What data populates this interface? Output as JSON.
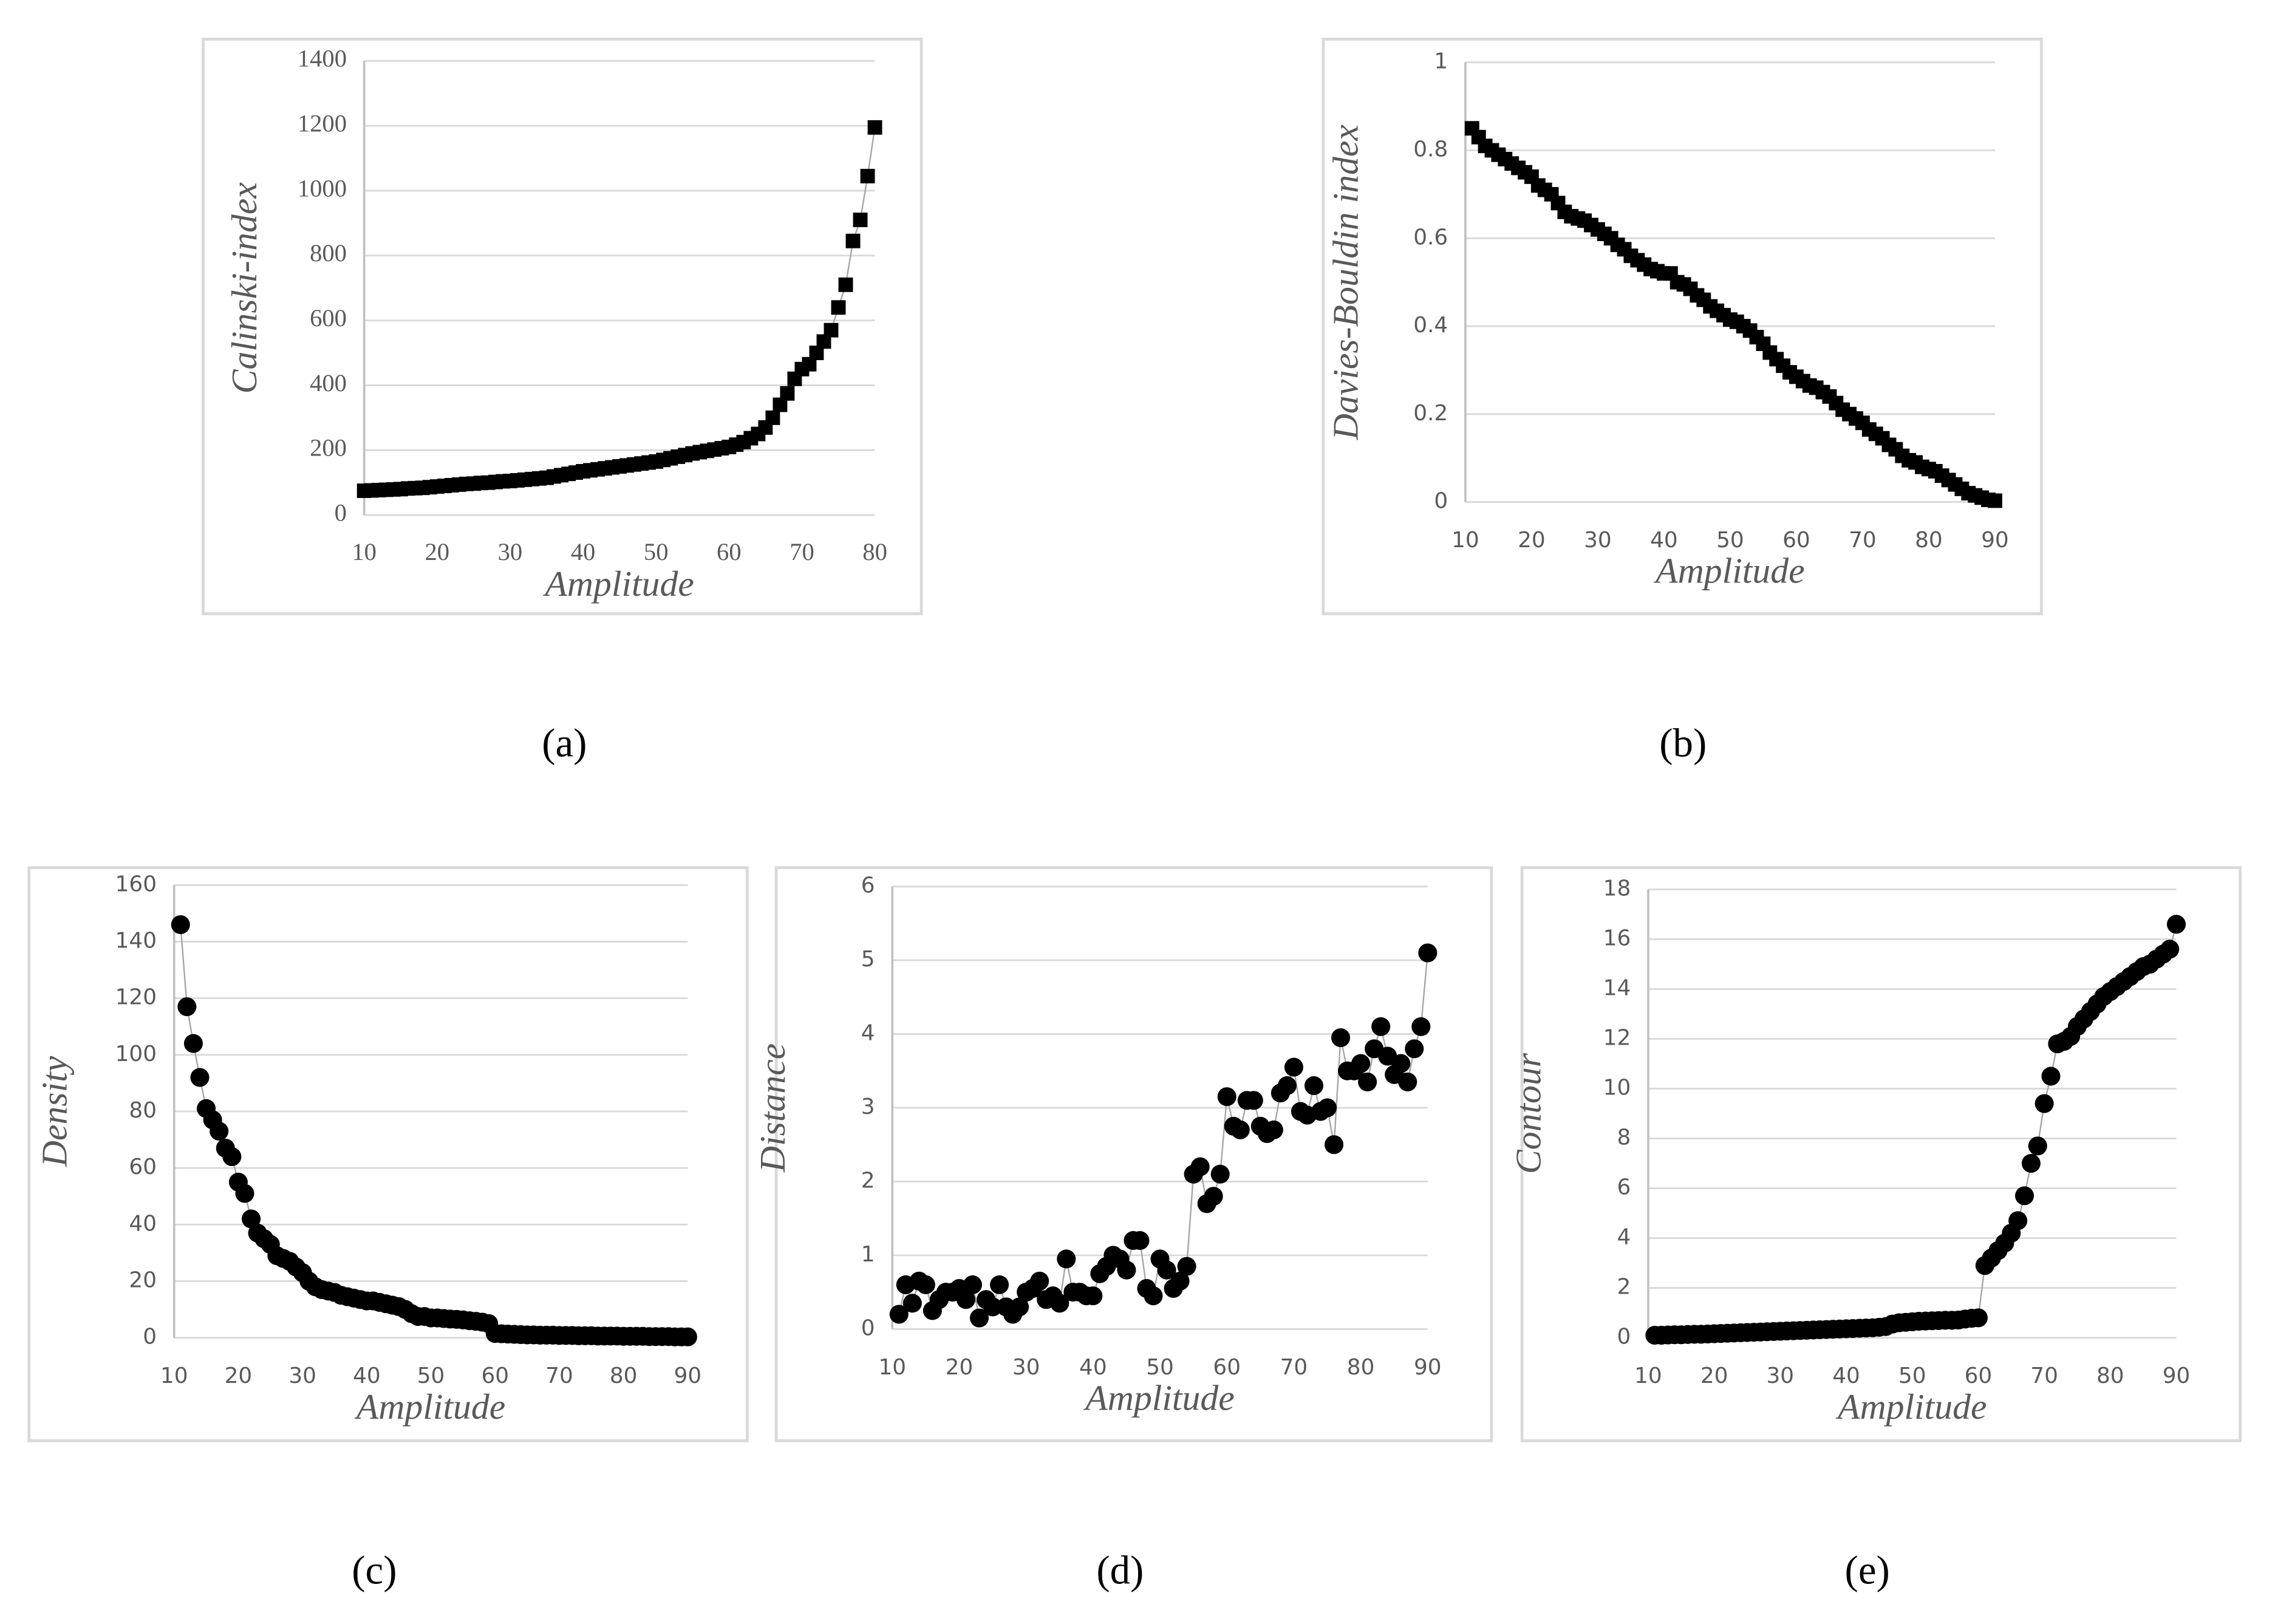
{
  "chart_data": [
    {
      "type": "line",
      "label": "(a)",
      "xlabel": "Amplitude",
      "ylabel": "Calinski-index",
      "marker": "square",
      "color": "#000000",
      "line_color": "#a6a6a6",
      "grid": true,
      "tick_font": "serif",
      "xlim": [
        10,
        80
      ],
      "xticks": [
        10,
        20,
        30,
        40,
        50,
        60,
        70,
        80
      ],
      "ylim": [
        0,
        1400
      ],
      "yticks": [
        0,
        200,
        400,
        600,
        800,
        1000,
        1200,
        1400
      ],
      "x": [
        10,
        11,
        12,
        13,
        14,
        15,
        16,
        17,
        18,
        19,
        20,
        21,
        22,
        23,
        24,
        25,
        26,
        27,
        28,
        29,
        30,
        31,
        32,
        33,
        34,
        35,
        36,
        37,
        38,
        39,
        40,
        41,
        42,
        43,
        44,
        45,
        46,
        47,
        48,
        49,
        50,
        51,
        52,
        53,
        54,
        55,
        56,
        57,
        58,
        59,
        60,
        61,
        62,
        63,
        64,
        65,
        66,
        67,
        68,
        69,
        70,
        71,
        72,
        73,
        74,
        75,
        76,
        77,
        78,
        79,
        80
      ],
      "values": [
        75,
        76,
        77,
        78,
        79,
        80,
        82,
        83,
        84,
        86,
        88,
        90,
        92,
        94,
        96,
        97,
        99,
        100,
        102,
        104,
        105,
        107,
        109,
        111,
        113,
        115,
        119,
        123,
        127,
        131,
        135,
        138,
        141,
        144,
        147,
        150,
        153,
        156,
        159,
        162,
        165,
        170,
        175,
        180,
        185,
        190,
        194,
        198,
        202,
        206,
        210,
        217,
        225,
        237,
        250,
        270,
        300,
        340,
        375,
        420,
        450,
        465,
        500,
        535,
        570,
        640,
        710,
        845,
        910,
        1045,
        1195
      ]
    },
    {
      "type": "line",
      "label": "(b)",
      "xlabel": "Amplitude",
      "ylabel": "Davies-Bouldin index",
      "marker": "square",
      "color": "#000000",
      "line_color": "#a6a6a6",
      "grid": true,
      "tick_font": "sans",
      "xlim": [
        10,
        90
      ],
      "xticks": [
        10,
        20,
        30,
        40,
        50,
        60,
        70,
        80,
        90
      ],
      "ylim": [
        0,
        1
      ],
      "yticks": [
        0,
        0.2,
        0.4,
        0.6,
        0.8,
        1
      ],
      "x": [
        11,
        12,
        13,
        14,
        15,
        16,
        17,
        18,
        19,
        20,
        21,
        22,
        23,
        24,
        25,
        26,
        27,
        28,
        29,
        30,
        31,
        32,
        33,
        34,
        35,
        36,
        37,
        38,
        39,
        40,
        41,
        42,
        43,
        44,
        45,
        46,
        47,
        48,
        49,
        50,
        51,
        52,
        53,
        54,
        55,
        56,
        57,
        58,
        59,
        60,
        61,
        62,
        63,
        64,
        65,
        66,
        67,
        68,
        69,
        70,
        71,
        72,
        73,
        74,
        75,
        76,
        77,
        78,
        79,
        80,
        81,
        82,
        83,
        84,
        85,
        86,
        87,
        88,
        89,
        90
      ],
      "values": [
        0.85,
        0.83,
        0.81,
        0.8,
        0.79,
        0.78,
        0.77,
        0.76,
        0.75,
        0.74,
        0.72,
        0.71,
        0.7,
        0.68,
        0.66,
        0.65,
        0.645,
        0.64,
        0.63,
        0.62,
        0.61,
        0.6,
        0.585,
        0.575,
        0.56,
        0.55,
        0.54,
        0.53,
        0.525,
        0.52,
        0.52,
        0.5,
        0.495,
        0.485,
        0.47,
        0.46,
        0.445,
        0.435,
        0.425,
        0.415,
        0.41,
        0.4,
        0.39,
        0.375,
        0.36,
        0.34,
        0.325,
        0.31,
        0.295,
        0.285,
        0.275,
        0.265,
        0.26,
        0.25,
        0.24,
        0.225,
        0.21,
        0.2,
        0.19,
        0.18,
        0.165,
        0.155,
        0.145,
        0.13,
        0.12,
        0.105,
        0.095,
        0.09,
        0.08,
        0.075,
        0.07,
        0.06,
        0.05,
        0.04,
        0.03,
        0.02,
        0.015,
        0.01,
        0.005,
        0.003
      ]
    },
    {
      "type": "line",
      "label": "(c)",
      "xlabel": "Amplitude",
      "ylabel": "Density",
      "marker": "circle",
      "color": "#000000",
      "line_color": "#a6a6a6",
      "grid": true,
      "tick_font": "sans",
      "xlim": [
        10,
        90
      ],
      "xticks": [
        10,
        20,
        30,
        40,
        50,
        60,
        70,
        80,
        90
      ],
      "ylim": [
        0,
        160
      ],
      "yticks": [
        0,
        20,
        40,
        60,
        80,
        100,
        120,
        140,
        160
      ],
      "x": [
        11,
        12,
        13,
        14,
        15,
        16,
        17,
        18,
        19,
        20,
        21,
        22,
        23,
        24,
        25,
        26,
        27,
        28,
        29,
        30,
        31,
        32,
        33,
        34,
        35,
        36,
        37,
        38,
        39,
        40,
        41,
        42,
        43,
        44,
        45,
        46,
        47,
        48,
        49,
        50,
        51,
        52,
        53,
        54,
        55,
        56,
        57,
        58,
        59,
        60,
        61,
        62,
        63,
        64,
        65,
        66,
        67,
        68,
        69,
        70,
        71,
        72,
        73,
        74,
        75,
        76,
        77,
        78,
        79,
        80,
        81,
        82,
        83,
        84,
        85,
        86,
        87,
        88,
        89,
        90
      ],
      "values": [
        146,
        117,
        104,
        92,
        81,
        77,
        73,
        67,
        64,
        55,
        51,
        42,
        37,
        35,
        33,
        29,
        28,
        27,
        25,
        23,
        20,
        18,
        17,
        16.5,
        16,
        15,
        14.5,
        14,
        13.5,
        13,
        13,
        12.5,
        12,
        11.5,
        11,
        10,
        8.5,
        7.5,
        7.5,
        7,
        7,
        6.8,
        6.6,
        6.5,
        6.3,
        6,
        5.8,
        5.5,
        5,
        1.5,
        1.4,
        1.3,
        1.2,
        1.1,
        1,
        1,
        0.9,
        0.9,
        0.9,
        0.8,
        0.8,
        0.8,
        0.7,
        0.7,
        0.7,
        0.6,
        0.6,
        0.6,
        0.6,
        0.5,
        0.5,
        0.5,
        0.5,
        0.4,
        0.4,
        0.4,
        0.4,
        0.3,
        0.3,
        0.3
      ]
    },
    {
      "type": "line",
      "label": "(d)",
      "xlabel": "Amplitude",
      "ylabel": "Distance",
      "marker": "circle",
      "color": "#000000",
      "line_color": "#a6a6a6",
      "grid": true,
      "tick_font": "sans",
      "xlim": [
        10,
        90
      ],
      "xticks": [
        10,
        20,
        30,
        40,
        50,
        60,
        70,
        80,
        90
      ],
      "ylim": [
        0,
        6
      ],
      "yticks": [
        0,
        1,
        2,
        3,
        4,
        5,
        6
      ],
      "x": [
        11,
        12,
        13,
        14,
        15,
        16,
        17,
        18,
        19,
        20,
        21,
        22,
        23,
        24,
        25,
        26,
        27,
        28,
        29,
        30,
        31,
        32,
        33,
        34,
        35,
        36,
        37,
        38,
        39,
        40,
        41,
        42,
        43,
        44,
        45,
        46,
        47,
        48,
        49,
        50,
        51,
        52,
        53,
        54,
        55,
        56,
        57,
        58,
        59,
        60,
        61,
        62,
        63,
        64,
        65,
        66,
        67,
        68,
        69,
        70,
        71,
        72,
        73,
        74,
        75,
        76,
        77,
        78,
        79,
        80,
        81,
        82,
        83,
        84,
        85,
        86,
        87,
        88,
        89,
        90
      ],
      "values": [
        0.2,
        0.6,
        0.35,
        0.65,
        0.6,
        0.25,
        0.4,
        0.5,
        0.5,
        0.55,
        0.4,
        0.6,
        0.15,
        0.4,
        0.3,
        0.6,
        0.3,
        0.2,
        0.3,
        0.5,
        0.55,
        0.65,
        0.4,
        0.45,
        0.35,
        0.95,
        0.5,
        0.5,
        0.45,
        0.45,
        0.75,
        0.85,
        1.0,
        0.95,
        0.8,
        1.2,
        1.2,
        0.55,
        0.45,
        0.95,
        0.8,
        0.55,
        0.65,
        0.85,
        2.1,
        2.2,
        1.7,
        1.8,
        2.1,
        3.15,
        2.75,
        2.7,
        3.1,
        3.1,
        2.75,
        2.65,
        2.7,
        3.2,
        3.3,
        3.55,
        2.95,
        2.9,
        3.3,
        2.95,
        3.0,
        2.5,
        3.95,
        3.5,
        3.5,
        3.6,
        3.35,
        3.8,
        4.1,
        3.7,
        3.45,
        3.6,
        3.35,
        3.8,
        4.1,
        5.1
      ]
    },
    {
      "type": "line",
      "label": "(e)",
      "xlabel": "Amplitude",
      "ylabel": "Contour",
      "marker": "circle",
      "color": "#000000",
      "line_color": "#a6a6a6",
      "grid": true,
      "tick_font": "sans",
      "xlim": [
        10,
        90
      ],
      "xticks": [
        10,
        20,
        30,
        40,
        50,
        60,
        70,
        80,
        90
      ],
      "ylim": [
        0,
        18
      ],
      "yticks": [
        0,
        2,
        4,
        6,
        8,
        10,
        12,
        14,
        16,
        18
      ],
      "x": [
        11,
        12,
        13,
        14,
        15,
        16,
        17,
        18,
        19,
        20,
        21,
        22,
        23,
        24,
        25,
        26,
        27,
        28,
        29,
        30,
        31,
        32,
        33,
        34,
        35,
        36,
        37,
        38,
        39,
        40,
        41,
        42,
        43,
        44,
        45,
        46,
        47,
        48,
        49,
        50,
        51,
        52,
        53,
        54,
        55,
        56,
        57,
        58,
        59,
        60,
        61,
        62,
        63,
        64,
        65,
        66,
        67,
        68,
        69,
        70,
        71,
        72,
        73,
        74,
        75,
        76,
        77,
        78,
        79,
        80,
        81,
        82,
        83,
        84,
        85,
        86,
        87,
        88,
        89,
        90
      ],
      "values": [
        0.1,
        0.1,
        0.11,
        0.12,
        0.12,
        0.13,
        0.14,
        0.14,
        0.15,
        0.16,
        0.17,
        0.18,
        0.19,
        0.2,
        0.21,
        0.22,
        0.23,
        0.24,
        0.25,
        0.26,
        0.27,
        0.28,
        0.29,
        0.3,
        0.31,
        0.32,
        0.33,
        0.34,
        0.35,
        0.36,
        0.37,
        0.38,
        0.39,
        0.4,
        0.42,
        0.45,
        0.55,
        0.6,
        0.62,
        0.64,
        0.66,
        0.67,
        0.68,
        0.69,
        0.7,
        0.7,
        0.71,
        0.75,
        0.78,
        0.8,
        2.9,
        3.2,
        3.5,
        3.8,
        4.2,
        4.7,
        5.7,
        7.0,
        7.7,
        9.4,
        10.5,
        11.8,
        11.9,
        12.1,
        12.5,
        12.8,
        13.1,
        13.4,
        13.7,
        13.9,
        14.1,
        14.3,
        14.5,
        14.7,
        14.9,
        15.0,
        15.2,
        15.4,
        15.6,
        16.6
      ]
    }
  ]
}
